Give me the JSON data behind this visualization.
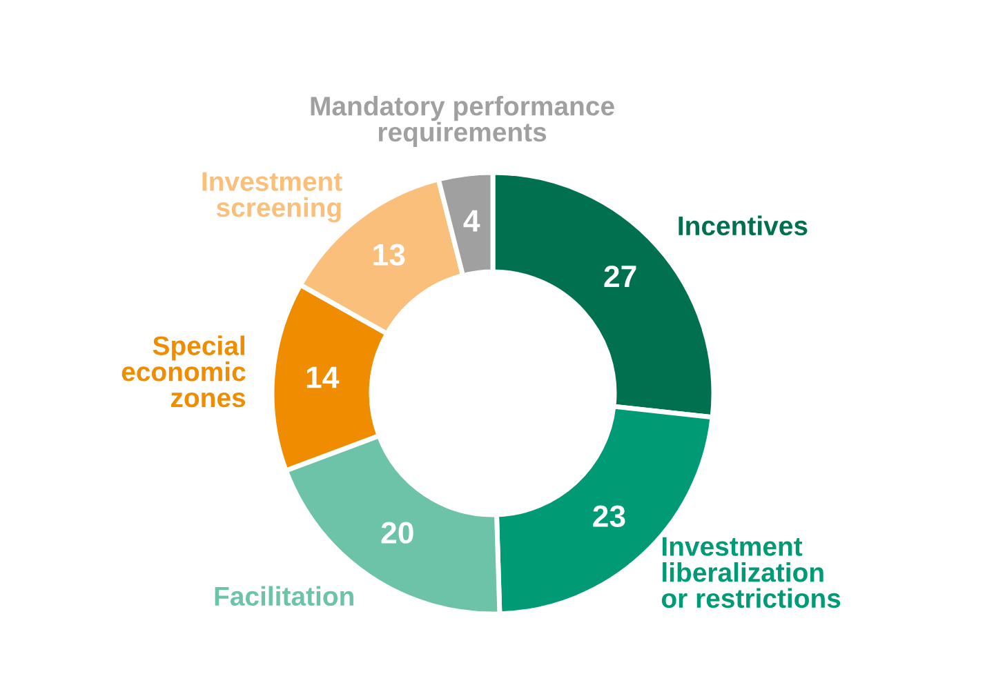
{
  "chart_data": {
    "type": "donut",
    "categories": [
      "Incentives",
      "Investment\nliberalization\nor restrictions",
      "Facilitation",
      "Special\neconomic\nzones",
      "Investment\nscreening",
      "Mandatory performance\nrequirements"
    ],
    "values": [
      27,
      23,
      20,
      14,
      13,
      4
    ],
    "colors": [
      "#00704f",
      "#009a74",
      "#6cc3a8",
      "#f08c00",
      "#fbbf7c",
      "#a0a0a0"
    ],
    "data_labels": true,
    "legend": false
  }
}
